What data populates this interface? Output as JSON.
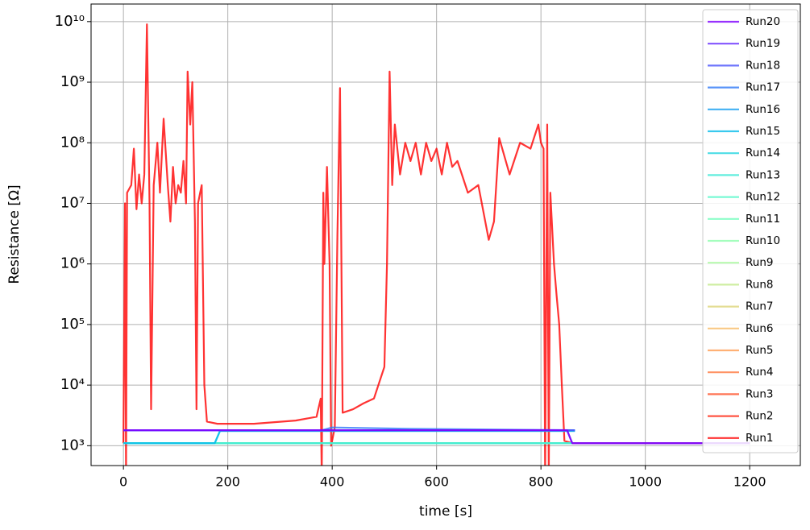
{
  "chart_data": {
    "type": "line",
    "xlabel": "time [s]",
    "ylabel": "Resistance [Ω]",
    "log_y": true,
    "grid": true,
    "legend": "upper right",
    "line_alpha": 0.8,
    "xlim": [
      -62,
      1297
    ],
    "ylim": [
      470,
      19500000000
    ],
    "xticks": [
      0,
      200,
      400,
      600,
      800,
      1000,
      1200
    ],
    "yticks": [
      {
        "value": 1000,
        "label": "10³"
      },
      {
        "value": 10000,
        "label": "10⁴"
      },
      {
        "value": 100000,
        "label": "10⁵"
      },
      {
        "value": 1000000,
        "label": "10⁶"
      },
      {
        "value": 10000000,
        "label": "10⁷"
      },
      {
        "value": 100000000,
        "label": "10⁸"
      },
      {
        "value": 1000000000,
        "label": "10⁹"
      },
      {
        "value": 10000000000,
        "label": "10¹⁰"
      }
    ],
    "series": [
      {
        "name": "Run20",
        "color": "#8000ff",
        "x": [
          0,
          850,
          860,
          1200
        ],
        "values": [
          1800,
          1800,
          1100,
          1100
        ]
      },
      {
        "name": "Run19",
        "color": "#652afe",
        "x": [
          0,
          850,
          860,
          1200
        ],
        "values": [
          1800,
          1800,
          1100,
          1100
        ]
      },
      {
        "name": "Run18",
        "color": "#4a53fb",
        "x": [
          0,
          865
        ],
        "values": [
          1800,
          1800
        ]
      },
      {
        "name": "Run17",
        "color": "#2f79f7",
        "x": [
          0,
          380,
          400,
          550,
          865
        ],
        "values": [
          1800,
          1800,
          2000,
          1900,
          1800
        ]
      },
      {
        "name": "Run16",
        "color": "#149df1",
        "x": [
          0,
          865
        ],
        "values": [
          1800,
          1800
        ]
      },
      {
        "name": "Run15",
        "color": "#07bcea",
        "x": [
          0,
          175,
          185,
          865
        ],
        "values": [
          1100,
          1100,
          1750,
          1750
        ]
      },
      {
        "name": "Run14",
        "color": "#22d5e0",
        "x": [
          0,
          175,
          185,
          865
        ],
        "values": [
          1100,
          1100,
          1750,
          1750
        ]
      },
      {
        "name": "Run13",
        "color": "#3cead5",
        "x": [
          0,
          860
        ],
        "values": [
          1100,
          1100
        ]
      },
      {
        "name": "Run12",
        "color": "#57f7c9",
        "x": [
          0,
          860
        ],
        "values": [
          1100,
          1100
        ]
      },
      {
        "name": "Run11",
        "color": "#72febc",
        "x": [
          0,
          860
        ],
        "values": [
          1100,
          1100
        ]
      },
      {
        "name": "Run10",
        "color": "#8dfead",
        "x": [
          0,
          860
        ],
        "values": [
          1100,
          1100
        ]
      },
      {
        "name": "Run9",
        "color": "#a8f79d",
        "x": [
          0,
          860
        ],
        "values": [
          1100,
          1100
        ]
      },
      {
        "name": "Run8",
        "color": "#c3ea8b",
        "x": [
          0,
          860
        ],
        "values": [
          1100,
          1100
        ]
      },
      {
        "name": "Run7",
        "color": "#ddd579",
        "x": [
          0,
          860
        ],
        "values": [
          1100,
          1100
        ]
      },
      {
        "name": "Run6",
        "color": "#f8bc66",
        "x": [
          0,
          860
        ],
        "values": [
          1100,
          1100
        ]
      },
      {
        "name": "Run5",
        "color": "#ff9d53",
        "x": [
          0,
          860
        ],
        "values": [
          1100,
          1100
        ]
      },
      {
        "name": "Run4",
        "color": "#ff793f",
        "x": [
          0,
          860
        ],
        "values": [
          1100,
          1100
        ]
      },
      {
        "name": "Run3",
        "color": "#ff532a",
        "x": [
          0,
          860
        ],
        "values": [
          1100,
          1100
        ]
      },
      {
        "name": "Run2",
        "color": "#ff2a15",
        "x": [
          0,
          860
        ],
        "values": [
          1100,
          1100
        ]
      },
      {
        "name": "Run1",
        "color": "#ff0000",
        "x": [
          0,
          3,
          5,
          7,
          15,
          20,
          25,
          30,
          35,
          40,
          45,
          50,
          53,
          58,
          65,
          70,
          77,
          85,
          90,
          95,
          100,
          105,
          110,
          115,
          120,
          123,
          128,
          132,
          137,
          140,
          143,
          147,
          150,
          155,
          160,
          180,
          250,
          330,
          370,
          378,
          380,
          383,
          385,
          390,
          395,
          398,
          405,
          410,
          415,
          420,
          440,
          460,
          480,
          500,
          505,
          510,
          515,
          520,
          530,
          540,
          550,
          560,
          570,
          580,
          590,
          600,
          610,
          620,
          630,
          640,
          660,
          680,
          700,
          710,
          720,
          740,
          760,
          780,
          795,
          800,
          805,
          808,
          812,
          815,
          818,
          825,
          830,
          835,
          840,
          845,
          860,
          1200
        ],
        "values": [
          1100,
          10000000,
          300,
          15000000,
          20000000,
          80000000,
          8000000,
          30000000,
          10000000,
          30000000,
          9000000000,
          10000000,
          4000,
          20000000,
          100000000,
          15000000,
          250000000,
          20000000,
          5000000,
          40000000,
          10000000,
          20000000,
          15000000,
          50000000,
          10000000,
          1500000000,
          200000000,
          1000000000,
          5000000,
          4000,
          10000000,
          15000000,
          20000000,
          10000,
          2500,
          2300,
          2300,
          2600,
          3000,
          6000,
          300,
          15000000,
          1000000,
          40000000,
          1000000,
          1000,
          2000,
          3000000,
          800000000,
          3500,
          4000,
          5000,
          6000,
          20000,
          1000000,
          1500000000,
          20000000,
          200000000,
          30000000,
          100000000,
          50000000,
          100000000,
          30000000,
          100000000,
          50000000,
          80000000,
          30000000,
          100000000,
          40000000,
          50000000,
          15000000,
          20000000,
          2500000,
          5000000,
          120000000,
          30000000,
          100000000,
          80000000,
          200000000,
          100000000,
          80000000,
          300,
          200000000,
          300,
          15000000,
          1000000,
          300000,
          100000,
          10000,
          1200,
          1100,
          1100
        ]
      }
    ]
  }
}
